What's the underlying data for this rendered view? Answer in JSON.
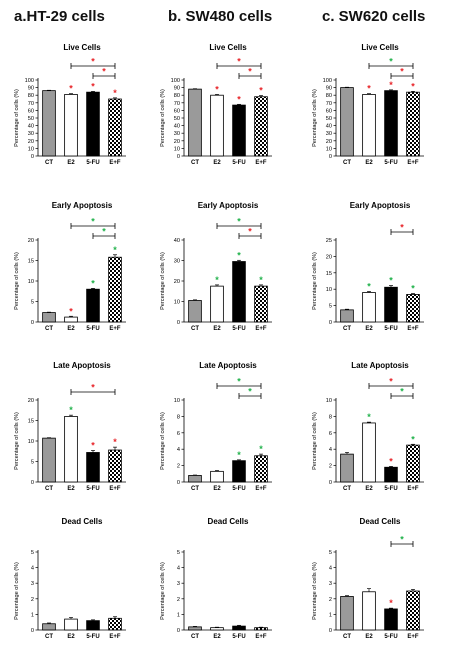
{
  "figure": {
    "columns": [
      {
        "label": "a.HT-29 cells"
      },
      {
        "label": "b. SW480 cells"
      },
      {
        "label": "c. SW620 cells"
      }
    ]
  },
  "colors": {
    "significance_red": "#e8262b",
    "significance_green": "#22b24c",
    "bar_CT": "#9a9a9a",
    "bar_E2": "#ffffff",
    "bar_5FU": "#000000",
    "bar_EF": "checkered"
  },
  "chart_data": [
    {
      "type": "bar",
      "cell_line": "HT-29",
      "title": "Live Cells",
      "ylabel": "Percentage of cells (%)",
      "categories": [
        "CT",
        "E2",
        "5-FU",
        "E+F"
      ],
      "values": [
        86,
        81,
        84,
        75
      ],
      "errors": [
        0.5,
        1,
        1,
        1.5
      ],
      "ylim": [
        0,
        100
      ],
      "yticks": [
        0,
        10,
        20,
        30,
        40,
        50,
        60,
        70,
        80,
        90,
        100
      ],
      "bar_marks": [
        "",
        "*",
        "*",
        "*"
      ],
      "bar_mark_colors": [
        "",
        "red",
        "red",
        "red"
      ],
      "brackets": [
        {
          "from": 1,
          "to": 3,
          "mark": "*",
          "color": "red"
        },
        {
          "from": 2,
          "to": 3,
          "mark": "*",
          "color": "red"
        }
      ]
    },
    {
      "type": "bar",
      "cell_line": "SW480",
      "title": "Live Cells",
      "ylabel": "Percentage of cells (%)",
      "categories": [
        "CT",
        "E2",
        "5-FU",
        "E+F"
      ],
      "values": [
        88,
        80,
        67,
        78
      ],
      "errors": [
        0.5,
        1,
        1,
        1.5
      ],
      "ylim": [
        0,
        100
      ],
      "yticks": [
        0,
        10,
        20,
        30,
        40,
        50,
        60,
        70,
        80,
        90,
        100
      ],
      "bar_marks": [
        "",
        "*",
        "*",
        "*"
      ],
      "bar_mark_colors": [
        "",
        "red",
        "red",
        "red"
      ],
      "brackets": [
        {
          "from": 1,
          "to": 3,
          "mark": "*",
          "color": "red"
        },
        {
          "from": 2,
          "to": 3,
          "mark": "*",
          "color": "red"
        }
      ]
    },
    {
      "type": "bar",
      "cell_line": "SW620",
      "title": "Live Cells",
      "ylabel": "Percentage of cells (%)",
      "categories": [
        "CT",
        "E2",
        "5-FU",
        "E+F"
      ],
      "values": [
        90,
        81,
        86,
        84
      ],
      "errors": [
        0.5,
        1,
        1,
        1
      ],
      "ylim": [
        0,
        100
      ],
      "yticks": [
        0,
        10,
        20,
        30,
        40,
        50,
        60,
        70,
        80,
        90,
        100
      ],
      "bar_marks": [
        "",
        "*",
        "*",
        "*"
      ],
      "bar_mark_colors": [
        "",
        "red",
        "red",
        "red"
      ],
      "brackets": [
        {
          "from": 1,
          "to": 3,
          "mark": "*",
          "color": "green"
        },
        {
          "from": 2,
          "to": 3,
          "mark": "*",
          "color": "red"
        }
      ]
    },
    {
      "type": "bar",
      "cell_line": "HT-29",
      "title": "Early Apoptosis",
      "ylabel": "Percentage of cells (%)",
      "categories": [
        "CT",
        "E2",
        "5-FU",
        "E+F"
      ],
      "values": [
        2.3,
        1.2,
        8,
        15.8
      ],
      "errors": [
        0.1,
        0.2,
        0.2,
        0.6
      ],
      "ylim": [
        0,
        20
      ],
      "yticks": [
        0,
        5,
        10,
        15,
        20
      ],
      "bar_marks": [
        "",
        "*",
        "*",
        "*"
      ],
      "bar_mark_colors": [
        "",
        "red",
        "green",
        "green"
      ],
      "brackets": [
        {
          "from": 1,
          "to": 3,
          "mark": "*",
          "color": "green"
        },
        {
          "from": 2,
          "to": 3,
          "mark": "*",
          "color": "green"
        }
      ]
    },
    {
      "type": "bar",
      "cell_line": "SW480",
      "title": "Early Apoptosis",
      "ylabel": "Percentage of cells (%)",
      "categories": [
        "CT",
        "E2",
        "5-FU",
        "E+F"
      ],
      "values": [
        10.5,
        17.5,
        29.5,
        17.5
      ],
      "errors": [
        0.3,
        0.6,
        0.6,
        0.6
      ],
      "ylim": [
        0,
        40
      ],
      "yticks": [
        0,
        10,
        20,
        30,
        40
      ],
      "bar_marks": [
        "",
        "*",
        "*",
        "*"
      ],
      "bar_mark_colors": [
        "",
        "green",
        "green",
        "green"
      ],
      "brackets": [
        {
          "from": 1,
          "to": 3,
          "mark": "*",
          "color": "green"
        },
        {
          "from": 2,
          "to": 3,
          "mark": "*",
          "color": "red"
        }
      ]
    },
    {
      "type": "bar",
      "cell_line": "SW620",
      "title": "Early Apoptosis",
      "ylabel": "Percentage of cells (%)",
      "categories": [
        "CT",
        "E2",
        "5-FU",
        "E+F"
      ],
      "values": [
        3.7,
        9,
        10.6,
        8.4
      ],
      "errors": [
        0.2,
        0.3,
        0.5,
        0.3
      ],
      "ylim": [
        0,
        25
      ],
      "yticks": [
        0,
        5,
        10,
        15,
        20,
        25
      ],
      "bar_marks": [
        "",
        "*",
        "*",
        "*"
      ],
      "bar_mark_colors": [
        "",
        "green",
        "green",
        "green"
      ],
      "brackets": [
        {
          "from": 2,
          "to": 3,
          "mark": "*",
          "color": "red"
        }
      ]
    },
    {
      "type": "bar",
      "cell_line": "HT-29",
      "title": "Late Apoptosis",
      "ylabel": "Percentage of cells (%)",
      "categories": [
        "CT",
        "E2",
        "5-FU",
        "E+F"
      ],
      "values": [
        10.7,
        16,
        7.2,
        7.8
      ],
      "errors": [
        0.1,
        0.3,
        0.5,
        0.7
      ],
      "ylim": [
        0,
        20
      ],
      "yticks": [
        0,
        5,
        10,
        15,
        20
      ],
      "bar_marks": [
        "",
        "*",
        "*",
        "*"
      ],
      "bar_mark_colors": [
        "",
        "green",
        "red",
        "red"
      ],
      "brackets": [
        {
          "from": 1,
          "to": 3,
          "mark": "*",
          "color": "red"
        }
      ]
    },
    {
      "type": "bar",
      "cell_line": "SW480",
      "title": "Late Apoptosis",
      "ylabel": "Percentage of cells (%)",
      "categories": [
        "CT",
        "E2",
        "5-FU",
        "E+F"
      ],
      "values": [
        0.8,
        1.3,
        2.6,
        3.2
      ],
      "errors": [
        0.05,
        0.1,
        0.1,
        0.2
      ],
      "ylim": [
        0,
        10
      ],
      "yticks": [
        0,
        2,
        4,
        6,
        8,
        10
      ],
      "bar_marks": [
        "",
        "",
        "*",
        "*"
      ],
      "bar_mark_colors": [
        "",
        "",
        "green",
        "green"
      ],
      "brackets": [
        {
          "from": 1,
          "to": 3,
          "mark": "*",
          "color": "green"
        },
        {
          "from": 2,
          "to": 3,
          "mark": "*",
          "color": "green"
        }
      ]
    },
    {
      "type": "bar",
      "cell_line": "SW620",
      "title": "Late Apoptosis",
      "ylabel": "Percentage of cells (%)",
      "categories": [
        "CT",
        "E2",
        "5-FU",
        "E+F"
      ],
      "values": [
        3.4,
        7.2,
        1.8,
        4.5
      ],
      "errors": [
        0.2,
        0.1,
        0.1,
        0.1
      ],
      "ylim": [
        0,
        10
      ],
      "yticks": [
        0,
        2,
        4,
        6,
        8,
        10
      ],
      "bar_marks": [
        "",
        "*",
        "*",
        "*"
      ],
      "bar_mark_colors": [
        "",
        "green",
        "red",
        "green"
      ],
      "brackets": [
        {
          "from": 1,
          "to": 3,
          "mark": "*",
          "color": "red"
        },
        {
          "from": 2,
          "to": 3,
          "mark": "*",
          "color": "green"
        }
      ]
    },
    {
      "type": "bar",
      "cell_line": "HT-29",
      "title": "Dead Cells",
      "ylabel": "Percentage of cells (%)",
      "categories": [
        "CT",
        "E2",
        "5-FU",
        "E+F"
      ],
      "values": [
        0.4,
        0.7,
        0.6,
        0.75
      ],
      "errors": [
        0.05,
        0.1,
        0.05,
        0.1
      ],
      "ylim": [
        0,
        5
      ],
      "yticks": [
        0,
        1,
        2,
        3,
        4,
        5
      ],
      "bar_marks": [
        "",
        "",
        "",
        ""
      ],
      "bar_mark_colors": [
        "",
        "",
        "",
        ""
      ],
      "brackets": []
    },
    {
      "type": "bar",
      "cell_line": "SW480",
      "title": "Dead Cells",
      "ylabel": "Percentage of cells (%)",
      "categories": [
        "CT",
        "E2",
        "5-FU",
        "E+F"
      ],
      "values": [
        0.2,
        0.15,
        0.25,
        0.15
      ],
      "errors": [
        0.03,
        0.03,
        0.05,
        0.03
      ],
      "ylim": [
        0,
        5
      ],
      "yticks": [
        0,
        1,
        2,
        3,
        4,
        5
      ],
      "bar_marks": [
        "",
        "",
        "",
        ""
      ],
      "bar_mark_colors": [
        "",
        "",
        "",
        ""
      ],
      "brackets": []
    },
    {
      "type": "bar",
      "cell_line": "SW620",
      "title": "Dead Cells",
      "ylabel": "Percentage of cells (%)",
      "categories": [
        "CT",
        "E2",
        "5-FU",
        "E+F"
      ],
      "values": [
        2.15,
        2.45,
        1.35,
        2.5
      ],
      "errors": [
        0.05,
        0.2,
        0.05,
        0.1
      ],
      "ylim": [
        0,
        5
      ],
      "yticks": [
        0,
        1,
        2,
        3,
        4,
        5
      ],
      "bar_marks": [
        "",
        "",
        "*",
        ""
      ],
      "bar_mark_colors": [
        "",
        "",
        "red",
        ""
      ],
      "brackets": [
        {
          "from": 2,
          "to": 3,
          "mark": "*",
          "color": "green"
        }
      ]
    }
  ]
}
